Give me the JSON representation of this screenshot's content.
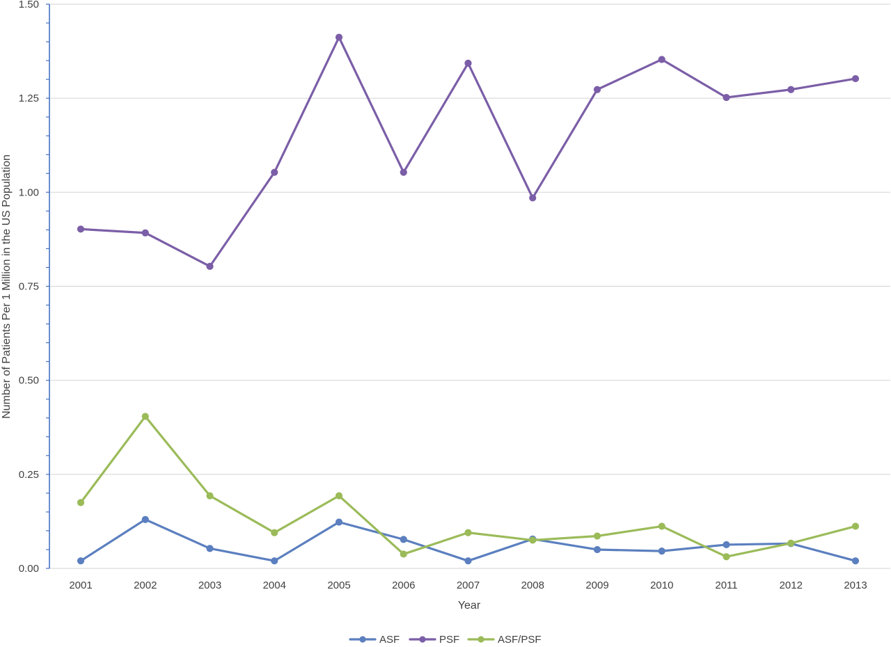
{
  "chart_data": {
    "type": "line",
    "title": "",
    "xlabel": "Year",
    "ylabel": "Number of Patients  Per 1 Million in the US Population",
    "categories": [
      "2001",
      "2002",
      "2003",
      "2004",
      "2005",
      "2006",
      "2007",
      "2008",
      "2009",
      "2010",
      "2011",
      "2012",
      "2013"
    ],
    "ylim": [
      0,
      1.5
    ],
    "yticks": [
      "0.00",
      "0.25",
      "0.50",
      "0.75",
      "1.00",
      "1.25",
      "1.50"
    ],
    "grid": true,
    "legend_position": "bottom",
    "series": [
      {
        "name": "ASF",
        "color": "#5b7fbf",
        "values": [
          0.02,
          0.13,
          0.053,
          0.02,
          0.123,
          0.077,
          0.02,
          0.078,
          0.05,
          0.046,
          0.063,
          0.066,
          0.02
        ]
      },
      {
        "name": "PSF",
        "color": "#7b5ea7",
        "values": [
          0.902,
          0.892,
          0.803,
          1.053,
          1.412,
          1.053,
          1.343,
          0.985,
          1.273,
          1.353,
          1.252,
          1.273,
          1.302
        ]
      },
      {
        "name": "ASF/PSF",
        "color": "#9bbb59",
        "values": [
          0.175,
          0.404,
          0.193,
          0.095,
          0.193,
          0.038,
          0.095,
          0.075,
          0.086,
          0.112,
          0.031,
          0.067,
          0.112
        ]
      }
    ]
  }
}
